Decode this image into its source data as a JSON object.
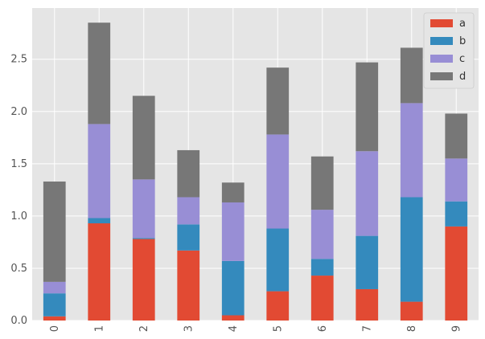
{
  "chart_data": {
    "type": "bar",
    "stacked": true,
    "title": "",
    "xlabel": "",
    "ylabel": "",
    "categories": [
      "0",
      "1",
      "2",
      "3",
      "4",
      "5",
      "6",
      "7",
      "8",
      "9"
    ],
    "series": [
      {
        "name": "a",
        "color": "#E24A33",
        "values": [
          0.04,
          0.93,
          0.78,
          0.67,
          0.05,
          0.28,
          0.43,
          0.3,
          0.18,
          0.9
        ]
      },
      {
        "name": "b",
        "color": "#348ABD",
        "values": [
          0.22,
          0.05,
          0.01,
          0.25,
          0.52,
          0.6,
          0.16,
          0.51,
          1.0,
          0.24
        ]
      },
      {
        "name": "c",
        "color": "#988ED5",
        "values": [
          0.11,
          0.9,
          0.56,
          0.26,
          0.56,
          0.9,
          0.47,
          0.81,
          0.9,
          0.41
        ]
      },
      {
        "name": "d",
        "color": "#777777",
        "values": [
          0.96,
          0.97,
          0.8,
          0.45,
          0.19,
          0.64,
          0.51,
          0.85,
          0.53,
          0.43
        ]
      }
    ],
    "ylim": [
      0,
      2.99
    ],
    "yticks": [
      "0.0",
      "0.5",
      "1.0",
      "1.5",
      "2.0",
      "2.5"
    ],
    "grid": true,
    "legend_position": "top-right",
    "xtick_rotation": 90
  }
}
